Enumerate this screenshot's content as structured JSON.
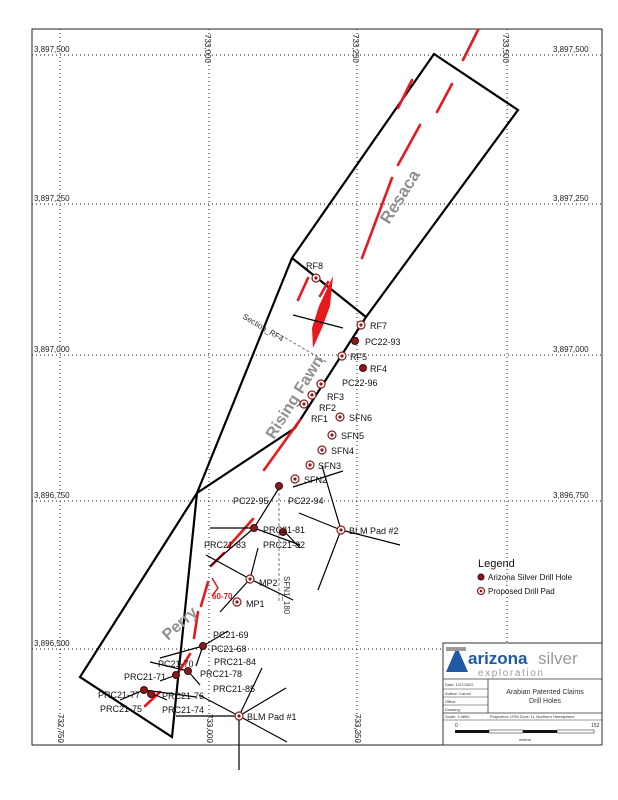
{
  "grid": {
    "northings": [
      "3,897,500",
      "3,897,250",
      "3,897,000",
      "3,896,750",
      "3,896,500"
    ],
    "eastings": [
      "732,750",
      "733,000",
      "733,250",
      "733,500"
    ]
  },
  "zones": {
    "resaca": "Resaca",
    "rising_fawn": "Rising Fawn",
    "perry": "Perry"
  },
  "drill_holes_existing": [
    "PC22-93",
    "PC22-95",
    "PC22-94",
    "PRC21-81",
    "PRC21-82",
    "PRC21-83",
    "PC21-69",
    "PC21-68",
    "PRC21-84",
    "PC21-70",
    "PRC21-71",
    "PRC21-78",
    "PRC21-77",
    "PRC21-76",
    "PRC21-75",
    "PRC21-74",
    "PRC21-85"
  ],
  "drill_holes_proposed": [
    "RF8",
    "RF7",
    "RF5",
    "RF4",
    "PC22-96",
    "RF3",
    "RF2",
    "RF1",
    "SFN6",
    "SFN5",
    "SFN4",
    "SFN3",
    "SFN2",
    "MP2",
    "MP1"
  ],
  "pads": [
    "BLM Pad #2",
    "BLM Pad #1"
  ],
  "sections": [
    "Section_RF4",
    "SFN1_180"
  ],
  "annotations": [
    "60-70"
  ],
  "legend": {
    "title": "Legend",
    "items": [
      "Arizona Silver Drill Hole",
      "Proposed Drill Pad"
    ]
  },
  "title_block": {
    "logo_main": "arizona",
    "logo_accent": "silver",
    "logo_sub": "exploration",
    "title_line1": "Arabian Patented Claims",
    "title_line2": "Drill Holes",
    "date_label": "Date: 1/27/2022",
    "author_label": "Author: Carroll",
    "office_label": "Office:",
    "drawing_label": "Drawing:",
    "scale_label": "Scale: 1:4800",
    "projection_label": "Projection: UTM Zone 11, Northern Hemisphere",
    "scale_start": "0",
    "scale_end": "152",
    "scale_unit": "meters",
    "colors": {
      "blue": "#1f5aa6",
      "grey": "#9a9a9a"
    }
  }
}
